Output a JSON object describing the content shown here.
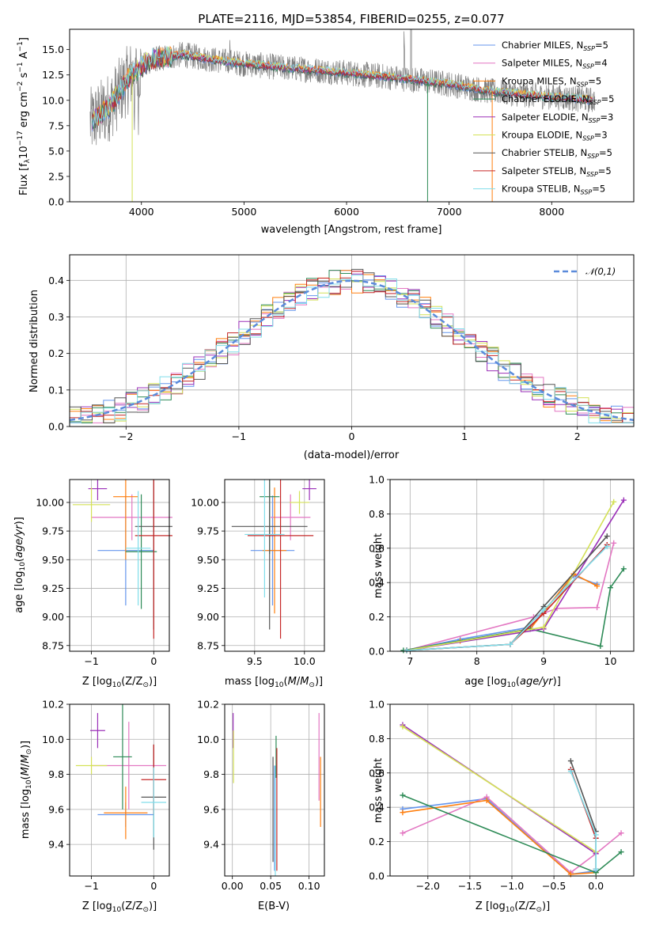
{
  "colors": [
    "#6495ED",
    "#E377C2",
    "#FF7F0E",
    "#2E8B57",
    "#9B30B8",
    "#D4E157",
    "#555555",
    "#C62828",
    "#80DEEA"
  ],
  "chart_data": [
    {
      "id": "spectrum",
      "type": "line",
      "title": "PLATE=2116, MJD=53854, FIBERID=0255, z=0.077",
      "xlabel": "wavelength [Angstrom, rest frame]",
      "ylabel": "Flux [f_λ10^-17 erg cm^-2 s^-1 A^-1]",
      "xlim": [
        3300,
        8800
      ],
      "ylim": [
        0,
        17
      ],
      "xticks": [
        "4000",
        "5000",
        "6000",
        "7000",
        "8000"
      ],
      "yticks": [
        "0.0",
        "2.5",
        "5.0",
        "7.5",
        "10.0",
        "12.5",
        "15.0"
      ],
      "legend": {
        "position": "top-right",
        "entries": [
          "Chabrier MILES, N_SSP=5",
          "Salpeter MILES, N_SSP=4",
          "Kroupa MILES, N_SSP=5",
          "Chabrier ELODIE, N_SSP=5",
          "Salpeter ELODIE, N_SSP=3",
          "Kroupa ELODIE, N_SSP=3",
          "Chabrier STELIB, N_SSP=5",
          "Salpeter STELIB, N_SSP=5",
          "Kroupa STELIB, N_SSP=5"
        ]
      },
      "continuum": {
        "x": [
          3500,
          3700,
          3900,
          4100,
          4400,
          4700,
          5000,
          5400,
          5800,
          6200,
          6600,
          7000,
          7400,
          7800,
          8200,
          8400
        ],
        "y": [
          7.8,
          9.5,
          12.5,
          14.0,
          14.5,
          14.0,
          13.6,
          13.2,
          12.9,
          12.5,
          12.1,
          11.6,
          10.9,
          10.5,
          10.2,
          10.0
        ]
      }
    },
    {
      "id": "residuals",
      "type": "histogram",
      "xlabel": "(data-model)/error",
      "ylabel": "Normed distribution",
      "xlim": [
        -2.5,
        2.5
      ],
      "ylim": [
        0,
        0.47
      ],
      "xticks": [
        "-2",
        "-1",
        "0",
        "1",
        "2"
      ],
      "yticks": [
        "0.0",
        "0.1",
        "0.2",
        "0.3",
        "0.4"
      ],
      "legend": {
        "position": "top-right",
        "entries": [
          "𝒩(0,1)"
        ]
      }
    },
    {
      "id": "age-Z",
      "type": "scatter",
      "xlabel": "Z [log10(Z/Z⊙)]",
      "ylabel": "age [log10(age/yr)]",
      "xlim": [
        -1.35,
        0.25
      ],
      "ylim": [
        8.7,
        10.2
      ],
      "xticks": [
        "-1",
        "0"
      ],
      "yticks": [
        "8.75",
        "9.00",
        "9.25",
        "9.50",
        "9.75",
        "10.00"
      ],
      "points": [
        {
          "x": -0.45,
          "y": 9.58,
          "ex": 0.45,
          "ey": 0.48,
          "c": 0
        },
        {
          "x": -0.35,
          "y": 9.87,
          "ex": 0.65,
          "ey": 0.2,
          "c": 1
        },
        {
          "x": -0.45,
          "y": 10.05,
          "ex": 0.2,
          "ey": 0.55,
          "c": 2
        },
        {
          "x": -0.2,
          "y": 9.57,
          "ex": 0.25,
          "ey": 0.5,
          "c": 3
        },
        {
          "x": -0.9,
          "y": 10.12,
          "ex": 0.15,
          "ey": 0.1,
          "c": 4
        },
        {
          "x": -1.0,
          "y": 9.98,
          "ex": 0.3,
          "ey": 0.15,
          "c": 5
        },
        {
          "x": 0.0,
          "y": 9.79,
          "ex": 0.3,
          "ey": 0.9,
          "c": 6
        },
        {
          "x": 0.0,
          "y": 9.71,
          "ex": 0.3,
          "ey": 0.9,
          "c": 7
        },
        {
          "x": -0.25,
          "y": 9.6,
          "ex": 0.2,
          "ey": 0.5,
          "c": 8
        }
      ]
    },
    {
      "id": "age-mass",
      "type": "scatter",
      "xlabel": "mass [log10(M/M⊙)]",
      "xlim": [
        9.2,
        10.2
      ],
      "ylim": [
        8.7,
        10.2
      ],
      "xticks": [
        "9.5",
        "10.0"
      ],
      "yticks": [
        "8.75",
        "9.00",
        "9.25",
        "9.50",
        "9.75",
        "10.00"
      ],
      "points": [
        {
          "x": 9.68,
          "y": 9.58,
          "ex": 0.22,
          "ey": 0.48,
          "c": 0
        },
        {
          "x": 9.86,
          "y": 9.87,
          "ex": 0.2,
          "ey": 0.2,
          "c": 1
        },
        {
          "x": 9.7,
          "y": 9.58,
          "ex": 0.12,
          "ey": 0.55,
          "c": 2
        },
        {
          "x": 9.65,
          "y": 10.05,
          "ex": 0.1,
          "ey": 0.5,
          "c": 3
        },
        {
          "x": 10.05,
          "y": 10.12,
          "ex": 0.07,
          "ey": 0.1,
          "c": 4
        },
        {
          "x": 9.95,
          "y": 10.0,
          "ex": 0.1,
          "ey": 0.1,
          "c": 5
        },
        {
          "x": 9.65,
          "y": 9.79,
          "ex": 0.38,
          "ey": 0.9,
          "c": 6
        },
        {
          "x": 9.76,
          "y": 9.71,
          "ex": 0.33,
          "ey": 0.9,
          "c": 7
        },
        {
          "x": 9.6,
          "y": 9.72,
          "ex": 0.2,
          "ey": 0.55,
          "c": 8
        }
      ]
    },
    {
      "id": "weight-age",
      "type": "line",
      "xlabel": "age [log10(age/yr)]",
      "ylabel": "mass weight",
      "xlim": [
        6.7,
        10.35
      ],
      "ylim": [
        0,
        1.0
      ],
      "xticks": [
        "7",
        "8",
        "9",
        "10"
      ],
      "yticks": [
        "0.0",
        "0.2",
        "0.4",
        "0.6",
        "0.8",
        "1.0"
      ],
      "series": [
        {
          "c": 0,
          "x": [
            6.95,
            7.75,
            8.8,
            9.45,
            9.8
          ],
          "y": [
            0.005,
            0.07,
            0.14,
            0.44,
            0.39
          ]
        },
        {
          "c": 1,
          "x": [
            6.95,
            8.85,
            9.2,
            9.8,
            10.05
          ],
          "y": [
            0.005,
            0.2,
            0.25,
            0.255,
            0.63
          ]
        },
        {
          "c": 2,
          "x": [
            6.95,
            7.75,
            8.8,
            9.45,
            9.8
          ],
          "y": [
            0.005,
            0.06,
            0.13,
            0.45,
            0.38
          ]
        },
        {
          "c": 3,
          "x": [
            6.9,
            8.8,
            9.85,
            10.0,
            10.2
          ],
          "y": [
            0.005,
            0.13,
            0.03,
            0.37,
            0.48
          ]
        },
        {
          "c": 4,
          "x": [
            6.95,
            9.0,
            10.2
          ],
          "y": [
            0.005,
            0.13,
            0.88
          ]
        },
        {
          "c": 5,
          "x": [
            6.95,
            9.0,
            10.05
          ],
          "y": [
            0.005,
            0.14,
            0.87
          ]
        },
        {
          "c": 6,
          "x": [
            6.95,
            8.5,
            9.0,
            9.95
          ],
          "y": [
            0.005,
            0.04,
            0.26,
            0.67
          ]
        },
        {
          "c": 7,
          "x": [
            6.95,
            8.5,
            9.0,
            9.95
          ],
          "y": [
            0.005,
            0.04,
            0.22,
            0.62
          ]
        },
        {
          "c": 8,
          "x": [
            6.95,
            8.5,
            9.0,
            9.95
          ],
          "y": [
            0.005,
            0.04,
            0.24,
            0.61
          ]
        }
      ]
    },
    {
      "id": "mass-Z",
      "type": "scatter",
      "xlabel": "Z [log10(Z/Z⊙)]",
      "ylabel": "mass [log10(M/M⊙)]",
      "xlim": [
        -1.35,
        0.25
      ],
      "ylim": [
        9.22,
        10.2
      ],
      "xticks": [
        "-1",
        "0"
      ],
      "yticks": [
        "9.4",
        "9.6",
        "9.8",
        "10.0",
        "10.2"
      ],
      "points": [
        {
          "x": -0.45,
          "y": 9.57,
          "ex": 0.45,
          "ey": 0.07,
          "c": 0
        },
        {
          "x": -0.4,
          "y": 9.85,
          "ex": 0.6,
          "ey": 0.25,
          "c": 1
        },
        {
          "x": -0.45,
          "y": 9.58,
          "ex": 0.35,
          "ey": 0.15,
          "c": 2
        },
        {
          "x": -0.5,
          "y": 9.9,
          "ex": 0.15,
          "ey": 0.3,
          "c": 3
        },
        {
          "x": -0.9,
          "y": 10.05,
          "ex": 0.12,
          "ey": 0.1,
          "c": 4
        },
        {
          "x": -1.0,
          "y": 9.85,
          "ex": 0.25,
          "ey": 0.05,
          "c": 5
        },
        {
          "x": 0.0,
          "y": 9.67,
          "ex": 0.2,
          "ey": 0.3,
          "c": 6
        },
        {
          "x": 0.0,
          "y": 9.77,
          "ex": 0.2,
          "ey": 0.2,
          "c": 7
        },
        {
          "x": 0.0,
          "y": 9.64,
          "ex": 0.2,
          "ey": 0.2,
          "c": 8
        }
      ]
    },
    {
      "id": "mass-EBV",
      "type": "scatter",
      "xlabel": "E(B-V)",
      "xlim": [
        -0.01,
        0.12
      ],
      "ylim": [
        9.22,
        10.2
      ],
      "xticks": [
        "0.00",
        "0.05",
        "0.10"
      ],
      "yticks": [
        "9.4",
        "9.6",
        "9.8",
        "10.0",
        "10.2"
      ],
      "points": [
        {
          "x": 0.001,
          "y": 10.05,
          "ey": 0.1,
          "c": 4
        },
        {
          "x": 0.0015,
          "y": 9.9,
          "ey": 0.15,
          "c": 5
        },
        {
          "x": 0.053,
          "y": 9.6,
          "ey": 0.3,
          "c": 6
        },
        {
          "x": 0.055,
          "y": 9.55,
          "ey": 0.3,
          "c": 0
        },
        {
          "x": 0.056,
          "y": 9.5,
          "ey": 0.35,
          "c": 8
        },
        {
          "x": 0.057,
          "y": 9.9,
          "ey": 0.12,
          "c": 3
        },
        {
          "x": 0.058,
          "y": 9.6,
          "ey": 0.35,
          "c": 7
        },
        {
          "x": 0.113,
          "y": 9.9,
          "ey": 0.25,
          "c": 1
        },
        {
          "x": 0.115,
          "y": 9.7,
          "ey": 0.2,
          "c": 2
        }
      ]
    },
    {
      "id": "weight-Z",
      "type": "line",
      "xlabel": "Z [log10(Z/Z⊙)]",
      "ylabel": "mass weight",
      "xlim": [
        -2.45,
        0.45
      ],
      "ylim": [
        0,
        1.0
      ],
      "xticks": [
        "-2.0",
        "-1.5",
        "-1.0",
        "-0.5",
        "0.0"
      ],
      "yticks": [
        "0.0",
        "0.2",
        "0.4",
        "0.6",
        "0.8",
        "1.0"
      ],
      "series": [
        {
          "c": 0,
          "x": [
            -2.3,
            -1.3,
            -0.3,
            0.0
          ],
          "y": [
            0.39,
            0.45,
            0.01,
            0.03
          ]
        },
        {
          "c": 1,
          "x": [
            -2.3,
            -1.3,
            -0.3,
            0.0,
            0.3
          ],
          "y": [
            0.25,
            0.46,
            0.02,
            0.13,
            0.25
          ]
        },
        {
          "c": 2,
          "x": [
            -2.3,
            -1.3,
            -0.3,
            0.0
          ],
          "y": [
            0.37,
            0.44,
            0.01,
            0.02
          ]
        },
        {
          "c": 3,
          "x": [
            -2.3,
            0.0,
            0.3
          ],
          "y": [
            0.47,
            0.02,
            0.14
          ]
        },
        {
          "c": 4,
          "x": [
            -2.3,
            0.0
          ],
          "y": [
            0.88,
            0.13
          ]
        },
        {
          "c": 5,
          "x": [
            -2.3,
            0.0
          ],
          "y": [
            0.87,
            0.14
          ]
        },
        {
          "c": 6,
          "x": [
            -0.3,
            0.0,
            0.0
          ],
          "y": [
            0.67,
            0.26,
            0.04
          ]
        },
        {
          "c": 7,
          "x": [
            -0.3,
            0.0,
            0.0
          ],
          "y": [
            0.62,
            0.22,
            0.04
          ]
        },
        {
          "c": 8,
          "x": [
            -0.3,
            0.0,
            0.0
          ],
          "y": [
            0.61,
            0.24,
            0.04
          ]
        }
      ]
    }
  ]
}
